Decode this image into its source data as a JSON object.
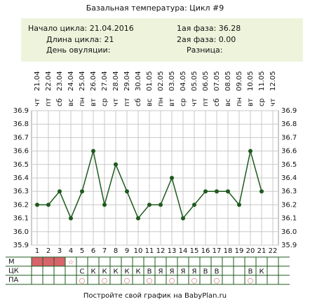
{
  "title": "Базальная температура: Цикл #9",
  "info": {
    "cycle_start": "Начало цикла: 21.04.2016",
    "cycle_length": "Длина цикла: 21",
    "ovulation_day": "День овуляции:",
    "phase1": "1ая фаза: 36.28",
    "phase2": "2ая фаза: 0.00",
    "difference": "Разница:"
  },
  "chart_data": {
    "type": "line",
    "weekdays": [
      "чт",
      "пт",
      "сб",
      "вс",
      "пн",
      "вт",
      "ср",
      "чт",
      "пт",
      "сб",
      "вс",
      "пн",
      "вт",
      "ср",
      "чт",
      "пт",
      "сб",
      "вс",
      "пн",
      "вт",
      "ср",
      "чт"
    ],
    "categories": [
      "21.04",
      "22.04",
      "23.04",
      "24.04",
      "25.04",
      "26.04",
      "27.04",
      "28.04",
      "29.04",
      "30.04",
      "01.05",
      "02.05",
      "03.05",
      "04.05",
      "05.05",
      "06.05",
      "07.05",
      "08.05",
      "09.05",
      "10.05",
      "11.05",
      "12.05"
    ],
    "day_numbers": [
      1,
      2,
      3,
      4,
      5,
      6,
      7,
      8,
      9,
      10,
      11,
      12,
      13,
      14,
      15,
      16,
      17,
      18,
      19,
      20,
      21,
      22
    ],
    "values": [
      36.2,
      36.2,
      36.3,
      36.1,
      36.3,
      36.6,
      36.2,
      36.5,
      36.3,
      36.1,
      36.2,
      36.2,
      36.4,
      36.1,
      36.2,
      36.3,
      36.3,
      36.3,
      36.2,
      36.6,
      36.3,
      null
    ],
    "color": "#1e5a1e",
    "ylim": [
      35.9,
      36.9
    ],
    "yticks": [
      35.9,
      {
        "value": 36,
        "label": "36.0"
      },
      36.1,
      36.2,
      36.3,
      36.4,
      36.5,
      36.6,
      36.7,
      36.8,
      36.9
    ],
    "grid": true,
    "rows": {
      "m": {
        "label": "М",
        "fill_days": [
          1,
          2,
          3
        ],
        "fill_color": "#d9636b",
        "cells": [
          null,
          null,
          null,
          "☆",
          null,
          null,
          null,
          null,
          null,
          null,
          null,
          null,
          null,
          null,
          null,
          null,
          null,
          null,
          null,
          null,
          null,
          null
        ]
      },
      "ck": {
        "label": "ЦК",
        "cells": [
          null,
          null,
          null,
          null,
          "С",
          "К",
          "К",
          "К",
          "К",
          "К",
          "В",
          "Я",
          "Я",
          "Я",
          "Я",
          "В",
          "В",
          null,
          null,
          "В",
          "К",
          null
        ]
      },
      "pa": {
        "label": "ПА",
        "cells": [
          null,
          null,
          null,
          null,
          "○",
          null,
          "○",
          null,
          "○",
          null,
          "○",
          null,
          "○",
          null,
          "○",
          null,
          "○",
          null,
          null,
          "○",
          null,
          null
        ]
      }
    }
  },
  "footer": "Постройте свой график на BabyPlan.ru"
}
